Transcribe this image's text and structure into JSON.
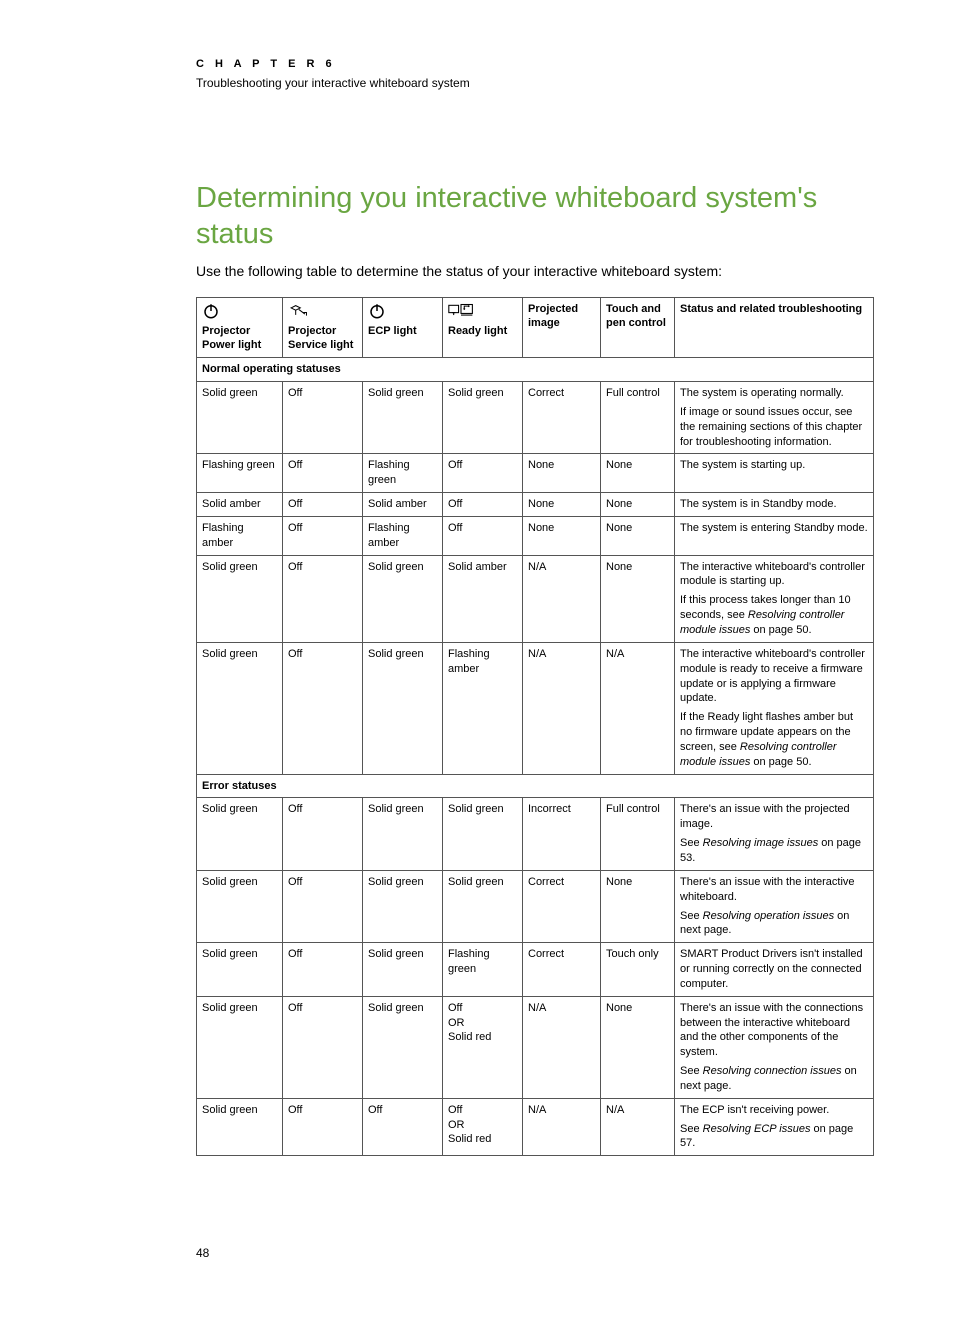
{
  "header": {
    "chapter_label": "C H A P T E R   6",
    "chapter_sub": "Troubleshooting your interactive whiteboard system"
  },
  "title": "Determining you interactive whiteboard system's status",
  "intro": "Use the following table to determine the status of your interactive whiteboard system:",
  "table": {
    "columns": [
      {
        "icon": "power",
        "label": "Projector Power light"
      },
      {
        "icon": "service",
        "label": "Projector Service light"
      },
      {
        "icon": "power",
        "label": "ECP light"
      },
      {
        "icon": "ready",
        "label": "Ready light"
      },
      {
        "icon": null,
        "label": "Projected image"
      },
      {
        "icon": null,
        "label": "Touch and pen control"
      },
      {
        "icon": null,
        "label": "Status and related troubleshooting"
      }
    ],
    "sections": [
      {
        "title": "Normal operating statuses",
        "rows": [
          {
            "c": [
              "Solid green",
              "Off",
              "Solid green",
              "Solid green",
              "Correct",
              "Full control"
            ],
            "status": [
              {
                "t": "The system is operating normally."
              },
              {
                "t": "If image or sound issues occur, see the remaining sections of this chapter for troubleshooting information."
              }
            ]
          },
          {
            "c": [
              "Flashing green",
              "Off",
              "Flashing green",
              "Off",
              "None",
              "None"
            ],
            "status": [
              {
                "t": "The system is starting up."
              }
            ]
          },
          {
            "c": [
              "Solid amber",
              "Off",
              "Solid amber",
              "Off",
              "None",
              "None"
            ],
            "status": [
              {
                "t": "The system is in Standby mode."
              }
            ]
          },
          {
            "c": [
              "Flashing amber",
              "Off",
              "Flashing amber",
              "Off",
              "None",
              "None"
            ],
            "status": [
              {
                "t": "The system is entering Standby mode."
              }
            ]
          },
          {
            "c": [
              "Solid green",
              "Off",
              "Solid green",
              "Solid amber",
              "N/A",
              "None"
            ],
            "status": [
              {
                "t": "The interactive whiteboard's controller module is starting up."
              },
              {
                "pre": "If this process takes longer than 10 seconds, see ",
                "i": "Resolving controller module issues",
                "post": " on page 50."
              }
            ]
          },
          {
            "c": [
              "Solid green",
              "Off",
              "Solid green",
              "Flashing amber",
              "N/A",
              "N/A"
            ],
            "status": [
              {
                "t": "The interactive whiteboard's controller module is ready to receive a firmware update or is applying a firmware update."
              },
              {
                "pre": "If the Ready light flashes amber but no firmware update appears on the screen, see ",
                "i": "Resolving controller module issues",
                "post": " on page 50."
              }
            ]
          }
        ]
      },
      {
        "title": "Error statuses",
        "rows": [
          {
            "c": [
              "Solid green",
              "Off",
              "Solid green",
              "Solid green",
              "Incorrect",
              "Full control"
            ],
            "status": [
              {
                "t": "There's an issue with the projected image."
              },
              {
                "pre": "See ",
                "i": "Resolving image issues",
                "post": " on page 53."
              }
            ]
          },
          {
            "c": [
              "Solid green",
              "Off",
              "Solid green",
              "Solid green",
              "Correct",
              "None"
            ],
            "status": [
              {
                "t": "There's an issue with the interactive whiteboard."
              },
              {
                "pre": "See ",
                "i": "Resolving operation issues",
                "post": " on next page."
              }
            ]
          },
          {
            "c": [
              "Solid green",
              "Off",
              "Solid green",
              "Flashing green",
              "Correct",
              "Touch only"
            ],
            "status": [
              {
                "t": "SMART Product Drivers isn't installed or running correctly on the connected computer."
              }
            ]
          },
          {
            "c": [
              "Solid green",
              "Off",
              "Solid green",
              "Off\nOR\nSolid red",
              "N/A",
              "None"
            ],
            "status": [
              {
                "t": "There's an issue with the connections between the interactive whiteboard and the other components of the system."
              },
              {
                "pre": "See ",
                "i": "Resolving connection issues",
                "post": " on next page."
              }
            ]
          },
          {
            "c": [
              "Solid green",
              "Off",
              "Off",
              "Off\nOR\nSolid red",
              "N/A",
              "N/A"
            ],
            "status": [
              {
                "t": "The ECP isn't receiving power."
              },
              {
                "pre": "See ",
                "i": "Resolving ECP issues",
                "post": " on page 57."
              }
            ]
          }
        ]
      }
    ]
  },
  "page_number": "48",
  "colors": {
    "title": "#6aa642",
    "text": "#000000",
    "border": "#555555",
    "background": "#ffffff"
  }
}
